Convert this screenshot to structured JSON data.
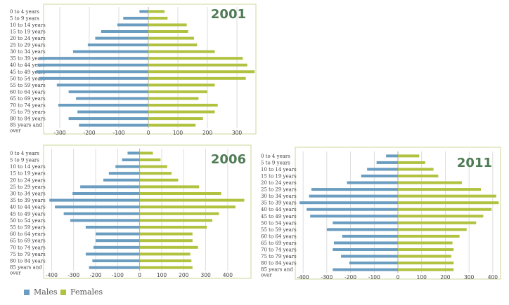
{
  "colors": {
    "males": "#6b9dc0",
    "females": "#b1c241"
  },
  "legend": {
    "males": "Males",
    "females": "Females"
  },
  "chart_data": [
    {
      "type": "bar",
      "title": "2001",
      "orientation": "horizontal",
      "categories": [
        "0 to 4 years",
        "5 to 9 years",
        "10 to 14 years",
        "15 to 19 years",
        "20 to 24 years",
        "25 to 29 years",
        "30 to 34 years",
        "35 to 39 years",
        "40 to 44 years",
        "45 to 49 years",
        "50 to 54 years",
        "55 to 59 years",
        "60 to 64 years",
        "65 to 69 years",
        "70 to 74 years",
        "75 to 79 years",
        "80 to 84 years",
        "85 years and over"
      ],
      "xlim": [
        -350,
        350
      ],
      "xticks": [
        -300,
        -200,
        -100,
        0,
        100,
        200,
        300
      ],
      "series": [
        {
          "name": "Males",
          "values": [
            -30,
            -85,
            -105,
            -160,
            -180,
            -205,
            -255,
            -370,
            -375,
            -380,
            -370,
            -310,
            -270,
            -245,
            -305,
            -240,
            -270,
            -235
          ]
        },
        {
          "name": "Females",
          "values": [
            55,
            65,
            130,
            135,
            155,
            165,
            225,
            320,
            335,
            360,
            330,
            225,
            200,
            170,
            235,
            225,
            185,
            160
          ]
        }
      ]
    },
    {
      "type": "bar",
      "title": "2006",
      "orientation": "horizontal",
      "categories": [
        "0 to 4 years",
        "5 to 9 years",
        "10 to 14 years",
        "15 to 19 years",
        "20 to 24 years",
        "25 to 29 years",
        "30 to 34 years",
        "35 to 39 years",
        "40 to 44 years",
        "45 to 49 years",
        "50 to 54 years",
        "55 to 59 years",
        "60 to 64 years",
        "65 to 69 years",
        "70 to 74 years",
        "75 to 79 years",
        "80 to 84 years",
        "85 years and over"
      ],
      "xlim": [
        -430,
        480
      ],
      "xticks": [
        -400,
        -300,
        -200,
        -100,
        0,
        100,
        200,
        300,
        400
      ],
      "series": [
        {
          "name": "Males",
          "values": [
            -55,
            -80,
            -110,
            -140,
            -165,
            -270,
            -305,
            -410,
            -385,
            -345,
            -315,
            -245,
            -200,
            -200,
            -210,
            -245,
            -215,
            -230
          ]
        },
        {
          "name": "Females",
          "values": [
            60,
            95,
            125,
            145,
            175,
            270,
            370,
            475,
            435,
            360,
            330,
            305,
            240,
            240,
            265,
            230,
            235,
            240
          ]
        }
      ]
    },
    {
      "type": "bar",
      "title": "2011",
      "orientation": "horizontal",
      "categories": [
        "0 to 4 years",
        "5 to 9 years",
        "10 to 14 years",
        "15 to 19 years",
        "20 to 24 years",
        "25 to 29 years",
        "30 to 34 years",
        "35 to 39 years",
        "40 to 44 years",
        "45 to 49 years",
        "50 to 54 years",
        "55 to 59 years",
        "60 to 64 years",
        "65 to 69 years",
        "70 to 74 years",
        "75 to 79 years",
        "80 to 84 years",
        "85 years and over"
      ],
      "xlim": [
        -430,
        430
      ],
      "xticks": [
        -400,
        -300,
        -200,
        -100,
        0,
        100,
        200,
        300,
        400
      ],
      "series": [
        {
          "name": "Males",
          "values": [
            -50,
            -90,
            -130,
            -155,
            -215,
            -365,
            -375,
            -415,
            -385,
            -370,
            -275,
            -300,
            -235,
            -270,
            -275,
            -240,
            -205,
            -275
          ]
        },
        {
          "name": "Females",
          "values": [
            90,
            115,
            150,
            170,
            270,
            350,
            415,
            425,
            395,
            360,
            330,
            290,
            260,
            230,
            235,
            225,
            235,
            235
          ]
        }
      ]
    }
  ]
}
